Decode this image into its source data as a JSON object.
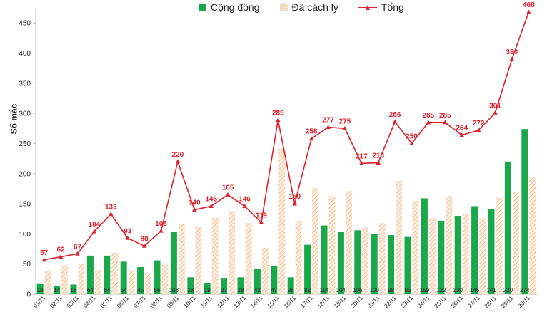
{
  "legend": {
    "series1": "Cộng đồng",
    "series2": "Đã cách ly",
    "series3": "Tổng"
  },
  "colors": {
    "community": "#1aa84b",
    "isolated_light": "#fbeee0",
    "isolated_stripe": "#f0c89a",
    "total": "#e0202a"
  },
  "chart_data": {
    "type": "bar",
    "ylabel": "Số mắc",
    "ylim": [
      0,
      468
    ],
    "yticks": [
      0,
      50,
      100,
      150,
      200,
      250,
      300,
      350,
      400,
      450
    ],
    "categories": [
      "01/11",
      "02/11",
      "03/11",
      "04/11",
      "05/11",
      "06/11",
      "07/11",
      "08/11",
      "09/11",
      "10/11",
      "11/11",
      "12/11",
      "13/11",
      "14/11",
      "15/11",
      "16/11",
      "17/11",
      "18/11",
      "19/11",
      "20/11",
      "21/11",
      "22/11",
      "23/11",
      "24/11",
      "25/11",
      "26/11",
      "27/11",
      "28/11",
      "29/11",
      "30/11"
    ],
    "series": [
      {
        "name": "Cộng đồng",
        "type": "bar",
        "values": [
          18,
          14,
          16,
          64,
          64,
          54,
          45,
          56,
          103,
          28,
          19,
          27,
          28,
          42,
          47,
          28,
          82,
          114,
          104,
          106,
          100,
          98,
          95,
          159,
          122,
          130,
          146,
          141,
          220,
          274
        ]
      },
      {
        "name": "Đã cách ly",
        "type": "bar",
        "values": [
          39,
          48,
          51,
          40,
          69,
          39,
          35,
          49,
          117,
          112,
          127,
          138,
          118,
          77,
          242,
          122,
          176,
          163,
          171,
          111,
          118,
          188,
          155,
          126,
          163,
          134,
          126,
          160,
          170,
          194
        ]
      },
      {
        "name": "Tổng",
        "type": "line",
        "values": [
          57,
          62,
          67,
          104,
          133,
          93,
          80,
          105,
          220,
          140,
          146,
          165,
          146,
          119,
          289,
          150,
          258,
          277,
          275,
          217,
          218,
          286,
          250,
          285,
          285,
          264,
          272,
          301,
          390,
          468
        ]
      }
    ]
  }
}
